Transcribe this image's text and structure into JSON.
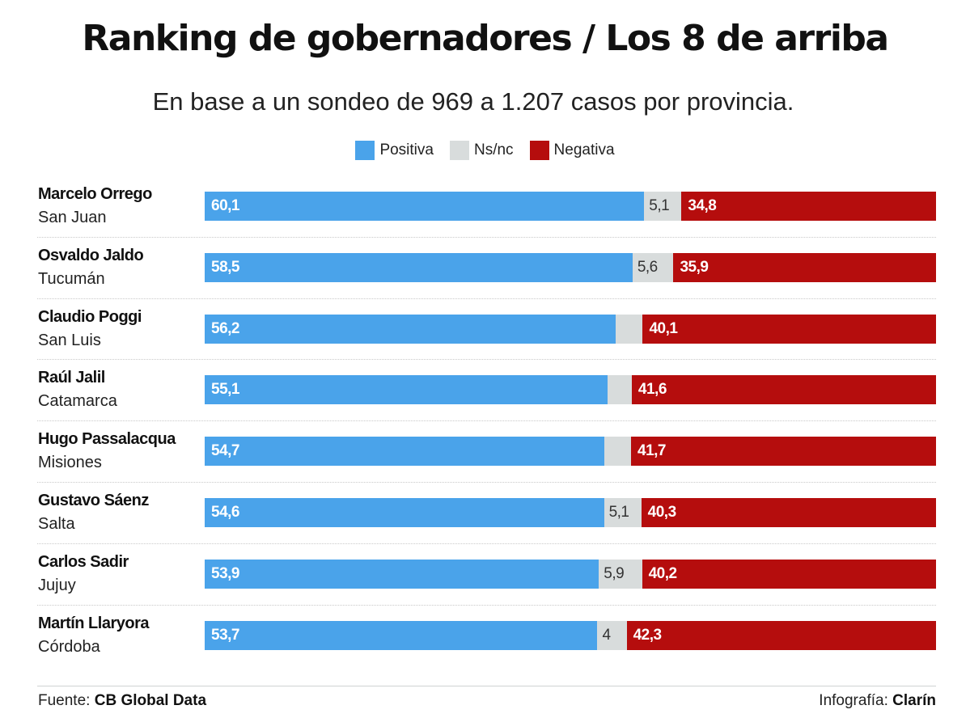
{
  "header": {
    "title": "Ranking de gobernadores / Los 8 de arriba",
    "subtitle": "En base a un sondeo de 969 a 1.207 casos por provincia."
  },
  "legend": [
    {
      "label": "Positiva",
      "color": "#4aa3ea"
    },
    {
      "label": "Ns/nc",
      "color": "#d8dcdc"
    },
    {
      "label": "Negativa",
      "color": "#b50d0d"
    }
  ],
  "chart_data": {
    "type": "bar",
    "stacked": true,
    "orientation": "horizontal",
    "categories": [
      "Marcelo Orrego",
      "Osvaldo Jaldo",
      "Claudio Poggi",
      "Raúl Jalil",
      "Hugo Passalacqua",
      "Gustavo Sáenz",
      "Carlos Sadir",
      "Martín Llaryora"
    ],
    "provinces": [
      "San Juan",
      "Tucumán",
      "San Luis",
      "Catamarca",
      "Misiones",
      "Salta",
      "Jujuy",
      "Córdoba"
    ],
    "series": [
      {
        "name": "Positiva",
        "values": [
          60.1,
          58.5,
          56.2,
          55.1,
          54.7,
          54.6,
          53.9,
          53.7
        ],
        "labels": [
          "60,1",
          "58,5",
          "56,2",
          "55,1",
          "54,7",
          "54,6",
          "53,9",
          "53,7"
        ],
        "color": "#4aa3ea"
      },
      {
        "name": "Ns/nc",
        "values": [
          5.1,
          5.6,
          3.7,
          3.3,
          3.6,
          5.1,
          5.9,
          4
        ],
        "labels": [
          "5,1",
          "5,6",
          "",
          "",
          "",
          "5,1",
          "5,9",
          "4"
        ],
        "color": "#d8dcdc"
      },
      {
        "name": "Negativa",
        "values": [
          34.8,
          35.9,
          40.1,
          41.6,
          41.7,
          40.3,
          40.2,
          42.3
        ],
        "labels": [
          "34,8",
          "35,9",
          "40,1",
          "41,6",
          "41,7",
          "40,3",
          "40,2",
          "42,3"
        ],
        "color": "#b50d0d"
      }
    ],
    "xlim": [
      0,
      100
    ]
  },
  "footer": {
    "source_prefix": "Fuente: ",
    "source_name": "CB Global Data",
    "credit_prefix": "Infografía: ",
    "credit_name": "Clarín"
  }
}
